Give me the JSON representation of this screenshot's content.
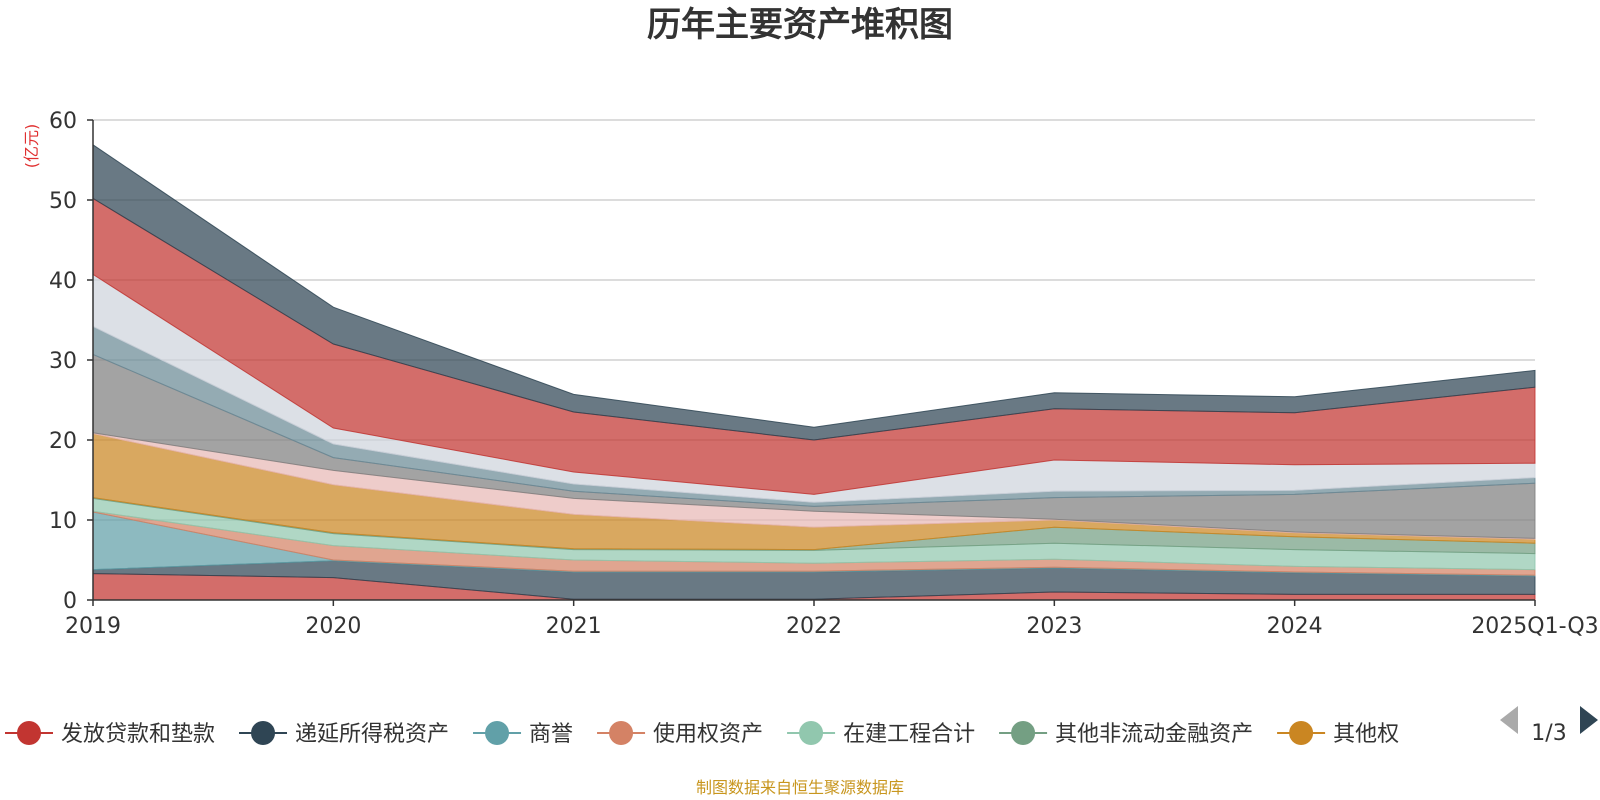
{
  "title": "历年主要资产堆积图",
  "unit_label": "(亿元)",
  "source": "制图数据来自恒生聚源数据库",
  "legend_page": "1/3",
  "chart_data": {
    "type": "area",
    "stacked": true,
    "title": "历年主要资产堆积图",
    "ylabel": "(亿元)",
    "ylim": [
      0,
      60
    ],
    "yticks": [
      0,
      10,
      20,
      30,
      40,
      50,
      60
    ],
    "ytick_labels": [
      "0",
      "10",
      "20",
      "30",
      "40",
      "50",
      "60"
    ],
    "categories": [
      "2019",
      "2020",
      "2021",
      "2022",
      "2023",
      "2024",
      "2025Q1-Q3"
    ],
    "grid": true,
    "legend_position": "bottom",
    "series": [
      {
        "name": "发放贷款和垫款",
        "color": "#c23531",
        "in_legend": true,
        "values": [
          3.3,
          2.8,
          0.1,
          0.1,
          1.0,
          0.7,
          0.7
        ]
      },
      {
        "name": "递延所得税资产",
        "color": "#2f4554",
        "in_legend": true,
        "values": [
          0.5,
          2.1,
          3.4,
          3.4,
          3.0,
          2.7,
          2.3
        ]
      },
      {
        "name": "商誉",
        "color": "#61a0a8",
        "in_legend": true,
        "values": [
          7.2,
          0.1,
          0.1,
          0.1,
          0.1,
          0.1,
          0.1
        ]
      },
      {
        "name": "使用权资产",
        "color": "#d48265",
        "in_legend": true,
        "values": [
          0.1,
          1.8,
          1.4,
          1.0,
          1.0,
          0.7,
          0.7
        ]
      },
      {
        "name": "在建工程合计",
        "color": "#91c7ae",
        "in_legend": true,
        "values": [
          1.6,
          1.5,
          1.3,
          1.6,
          2.0,
          2.1,
          2.0
        ]
      },
      {
        "name": "其他非流动金融资产",
        "color": "#749f83",
        "in_legend": true,
        "values": [
          0.1,
          0.1,
          0.1,
          0.1,
          2.0,
          1.6,
          1.3
        ]
      },
      {
        "name": "其他权",
        "color": "#ca8622",
        "in_legend": true,
        "values": [
          8.0,
          6.0,
          4.3,
          2.8,
          0.9,
          0.5,
          0.5
        ]
      },
      {
        "name": "",
        "color": "#e8b9b5",
        "in_legend": false,
        "values": [
          0.1,
          1.8,
          2.0,
          2.0,
          0.1,
          0.1,
          0.1
        ]
      },
      {
        "name": "",
        "color": "#7f7f7f",
        "in_legend": false,
        "values": [
          9.8,
          1.6,
          0.9,
          0.6,
          2.7,
          4.7,
          6.9
        ]
      },
      {
        "name": "",
        "color": "#6b8a96",
        "in_legend": false,
        "values": [
          3.5,
          1.7,
          0.9,
          0.5,
          0.8,
          0.5,
          0.7
        ]
      },
      {
        "name": "",
        "color": "#cfd4dc",
        "in_legend": false,
        "values": [
          6.5,
          2.0,
          1.5,
          1.0,
          3.9,
          3.2,
          1.8
        ]
      },
      {
        "name": "",
        "color": "#c23531",
        "in_legend": false,
        "values": [
          9.5,
          10.5,
          7.5,
          6.8,
          6.4,
          6.5,
          9.5
        ]
      },
      {
        "name": "",
        "color": "#2f4554",
        "in_legend": false,
        "values": [
          6.7,
          4.6,
          2.2,
          1.6,
          2.0,
          2.0,
          2.1
        ]
      }
    ]
  }
}
